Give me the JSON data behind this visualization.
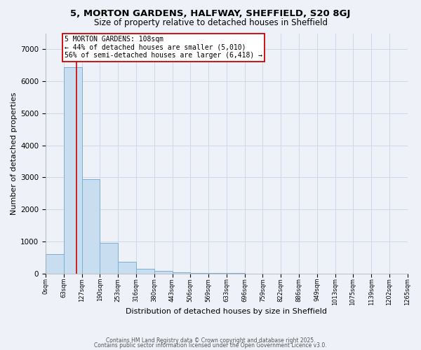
{
  "title1": "5, MORTON GARDENS, HALFWAY, SHEFFIELD, S20 8GJ",
  "title2": "Size of property relative to detached houses in Sheffield",
  "xlabel": "Distribution of detached houses by size in Sheffield",
  "ylabel": "Number of detached properties",
  "bar_values": [
    600,
    6450,
    2950,
    950,
    370,
    140,
    80,
    30,
    5,
    3,
    2,
    1,
    1,
    1,
    0,
    0,
    0,
    0,
    0,
    0
  ],
  "bin_edges": [
    0,
    63,
    127,
    190,
    253,
    316,
    380,
    443,
    506,
    569,
    633,
    696,
    759,
    822,
    886,
    949,
    1013,
    1075,
    1139,
    1202,
    1265
  ],
  "xtick_labels": [
    "0sqm",
    "63sqm",
    "127sqm",
    "190sqm",
    "253sqm",
    "316sqm",
    "380sqm",
    "443sqm",
    "506sqm",
    "569sqm",
    "633sqm",
    "696sqm",
    "759sqm",
    "822sqm",
    "886sqm",
    "949sqm",
    "1013sqm",
    "1075sqm",
    "1139sqm",
    "1202sqm",
    "1265sqm"
  ],
  "bar_color": "#c8ddf0",
  "bar_edge_color": "#7bafd4",
  "property_size": 108,
  "vline_color": "#cc0000",
  "annotation_line1": "5 MORTON GARDENS: 108sqm",
  "annotation_line2": "← 44% of detached houses are smaller (5,010)",
  "annotation_line3": "56% of semi-detached houses are larger (6,418) →",
  "annotation_box_color": "#ffffff",
  "annotation_box_edge": "#cc0000",
  "ylim": [
    0,
    7500
  ],
  "yticks": [
    0,
    1000,
    2000,
    3000,
    4000,
    5000,
    6000,
    7000
  ],
  "grid_color": "#c8d4e8",
  "bg_color": "#eef2f8",
  "footer1": "Contains HM Land Registry data © Crown copyright and database right 2025.",
  "footer2": "Contains public sector information licensed under the Open Government Licence v3.0."
}
